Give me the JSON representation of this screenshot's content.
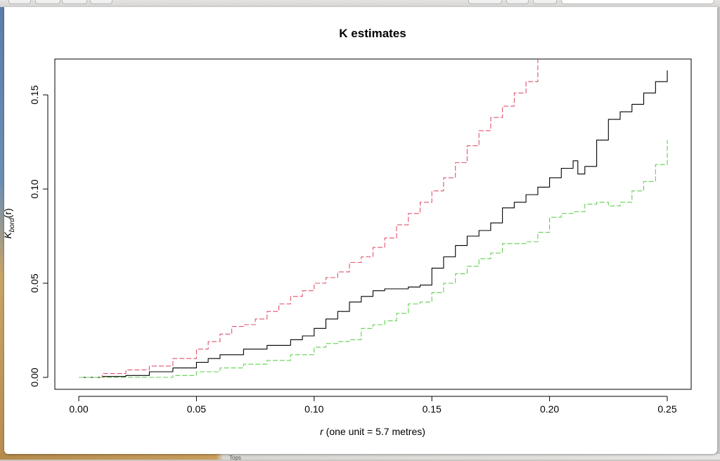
{
  "bottom_window_text": "Tops",
  "chart_data": {
    "type": "line",
    "title": "K estimates",
    "xlabel_var": "r",
    "xlabel_rest": " (one unit = 5.7 metres)",
    "ylabel_main": "K",
    "ylabel_sub": "bord",
    "ylabel_arg": "(r)",
    "xlim": [
      0.0,
      0.25
    ],
    "ylim": [
      0.0,
      0.165
    ],
    "x_ticks": [
      "0.00",
      "0.05",
      "0.10",
      "0.15",
      "0.20",
      "0.25"
    ],
    "y_ticks": [
      "0.00",
      "0.05",
      "0.10",
      "0.15"
    ],
    "grid": false,
    "series": [
      {
        "color": "#000000",
        "dash": "solid",
        "x": [
          0.0,
          0.01,
          0.02,
          0.03,
          0.04,
          0.05,
          0.055,
          0.06,
          0.07,
          0.08,
          0.09,
          0.095,
          0.1,
          0.105,
          0.11,
          0.115,
          0.12,
          0.125,
          0.13,
          0.135,
          0.14,
          0.145,
          0.15,
          0.155,
          0.16,
          0.165,
          0.17,
          0.175,
          0.18,
          0.185,
          0.19,
          0.195,
          0.2,
          0.205,
          0.21,
          0.212,
          0.215,
          0.22,
          0.225,
          0.23,
          0.235,
          0.24,
          0.245,
          0.25
        ],
        "y": [
          0.0,
          0.0005,
          0.001,
          0.003,
          0.005,
          0.008,
          0.01,
          0.012,
          0.015,
          0.017,
          0.02,
          0.022,
          0.026,
          0.031,
          0.035,
          0.04,
          0.043,
          0.046,
          0.047,
          0.047,
          0.048,
          0.049,
          0.058,
          0.064,
          0.07,
          0.075,
          0.078,
          0.082,
          0.09,
          0.093,
          0.097,
          0.101,
          0.106,
          0.111,
          0.115,
          0.108,
          0.112,
          0.126,
          0.137,
          0.141,
          0.145,
          0.151,
          0.157,
          0.163
        ]
      },
      {
        "color": "#df536b",
        "dash": "dashed",
        "x": [
          0.0,
          0.01,
          0.02,
          0.03,
          0.04,
          0.05,
          0.055,
          0.06,
          0.065,
          0.07,
          0.075,
          0.08,
          0.085,
          0.09,
          0.095,
          0.1,
          0.105,
          0.11,
          0.115,
          0.12,
          0.125,
          0.13,
          0.135,
          0.14,
          0.145,
          0.15,
          0.155,
          0.16,
          0.165,
          0.17,
          0.175,
          0.18,
          0.185,
          0.19,
          0.195
        ],
        "y": [
          0.0,
          0.002,
          0.004,
          0.006,
          0.01,
          0.015,
          0.019,
          0.023,
          0.027,
          0.028,
          0.031,
          0.035,
          0.039,
          0.043,
          0.046,
          0.05,
          0.053,
          0.056,
          0.061,
          0.064,
          0.069,
          0.074,
          0.081,
          0.087,
          0.093,
          0.099,
          0.106,
          0.114,
          0.123,
          0.131,
          0.138,
          0.144,
          0.151,
          0.157,
          0.175
        ]
      },
      {
        "color": "#61d04f",
        "dash": "dashed",
        "x": [
          0.0,
          0.01,
          0.02,
          0.03,
          0.04,
          0.05,
          0.06,
          0.07,
          0.08,
          0.09,
          0.1,
          0.105,
          0.11,
          0.115,
          0.12,
          0.125,
          0.13,
          0.135,
          0.14,
          0.145,
          0.15,
          0.155,
          0.16,
          0.165,
          0.17,
          0.175,
          0.18,
          0.185,
          0.19,
          0.195,
          0.2,
          0.205,
          0.21,
          0.215,
          0.22,
          0.225,
          0.23,
          0.235,
          0.24,
          0.245,
          0.25
        ],
        "y": [
          0.0,
          0.0,
          0.0,
          0.0,
          0.001,
          0.003,
          0.005,
          0.007,
          0.009,
          0.012,
          0.016,
          0.018,
          0.019,
          0.02,
          0.026,
          0.028,
          0.03,
          0.034,
          0.039,
          0.04,
          0.045,
          0.05,
          0.055,
          0.059,
          0.063,
          0.066,
          0.071,
          0.071,
          0.072,
          0.077,
          0.085,
          0.087,
          0.088,
          0.092,
          0.093,
          0.091,
          0.093,
          0.099,
          0.104,
          0.113,
          0.126
        ]
      }
    ]
  }
}
